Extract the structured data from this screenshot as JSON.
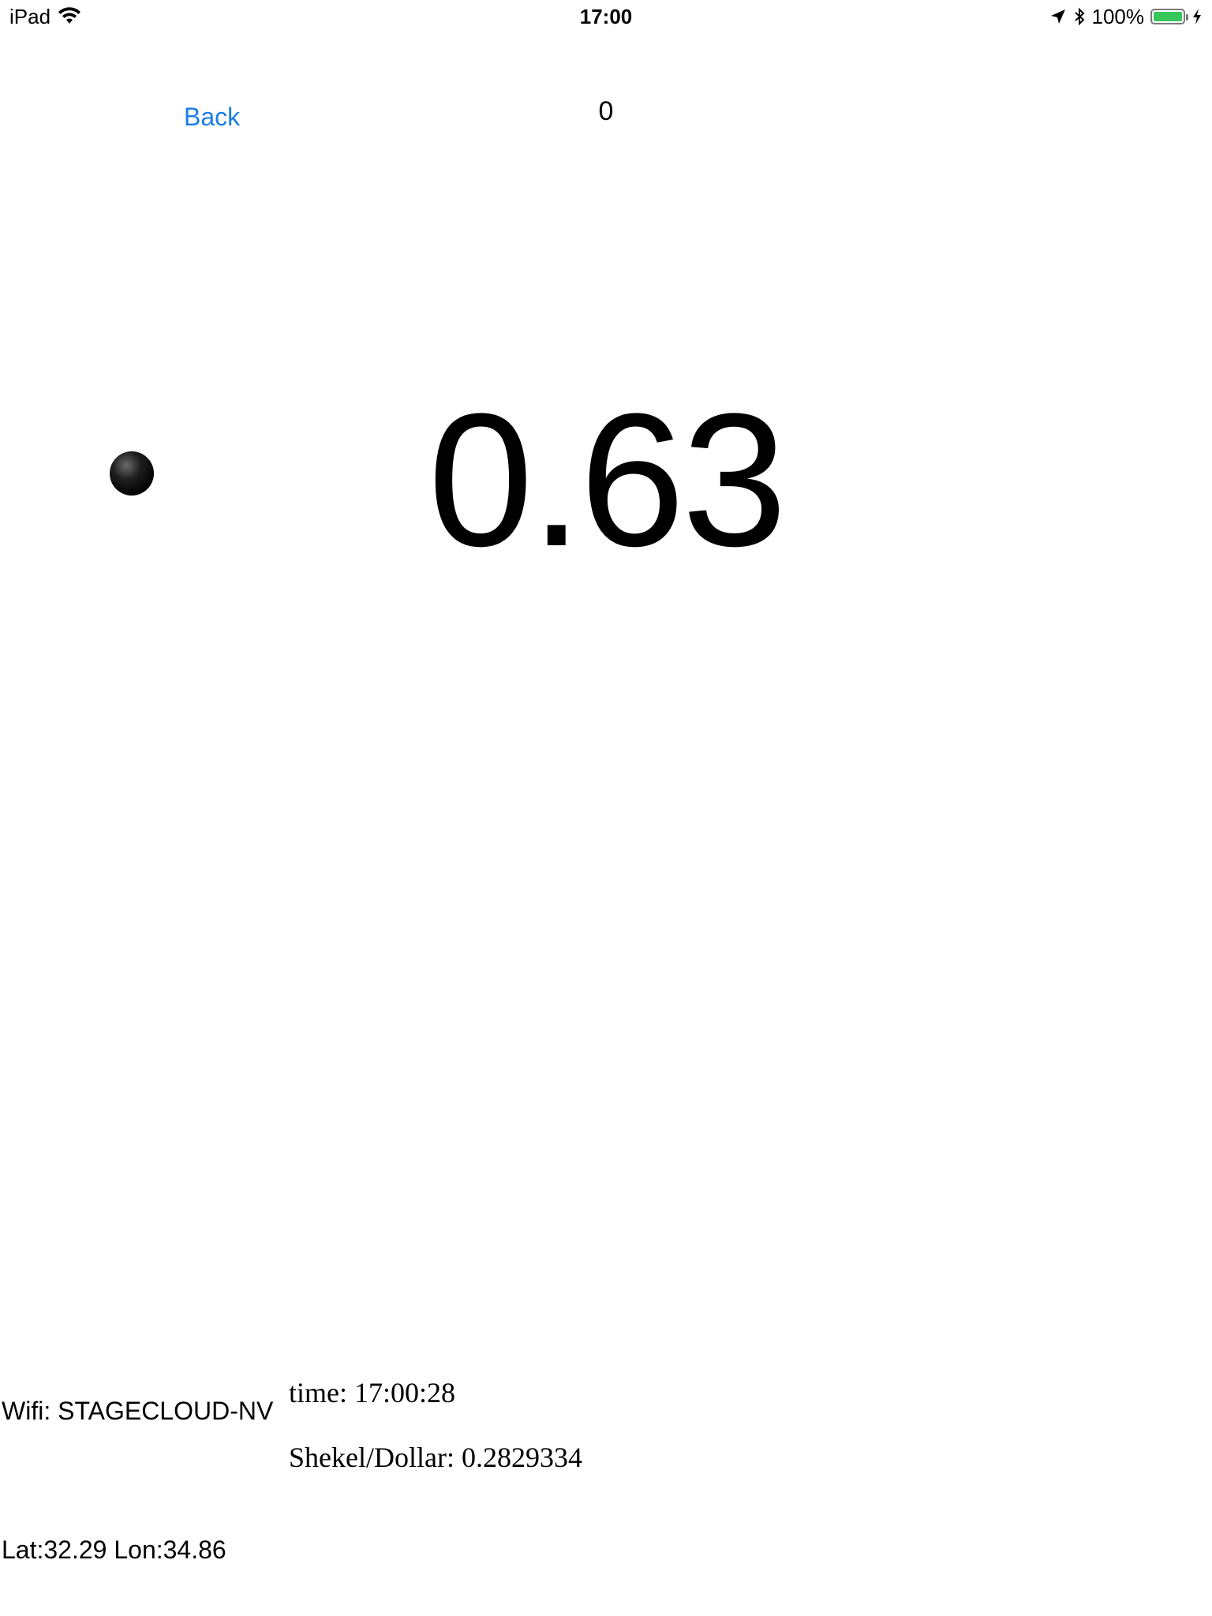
{
  "status_bar": {
    "device": "iPad",
    "time": "17:00",
    "battery_percent": "100%",
    "battery_level": 1.0,
    "battery_color": "#35c759"
  },
  "nav": {
    "back_label": "Back",
    "counter": "0"
  },
  "main": {
    "value": "0.63"
  },
  "info": {
    "wifi": "Wifi: STAGECLOUD-NV",
    "time": "time: 17:00:28",
    "exchange": "Shekel/Dollar: 0.2829334",
    "coords": "Lat:32.29 Lon:34.86"
  },
  "colors": {
    "link": "#1a7ee6"
  }
}
